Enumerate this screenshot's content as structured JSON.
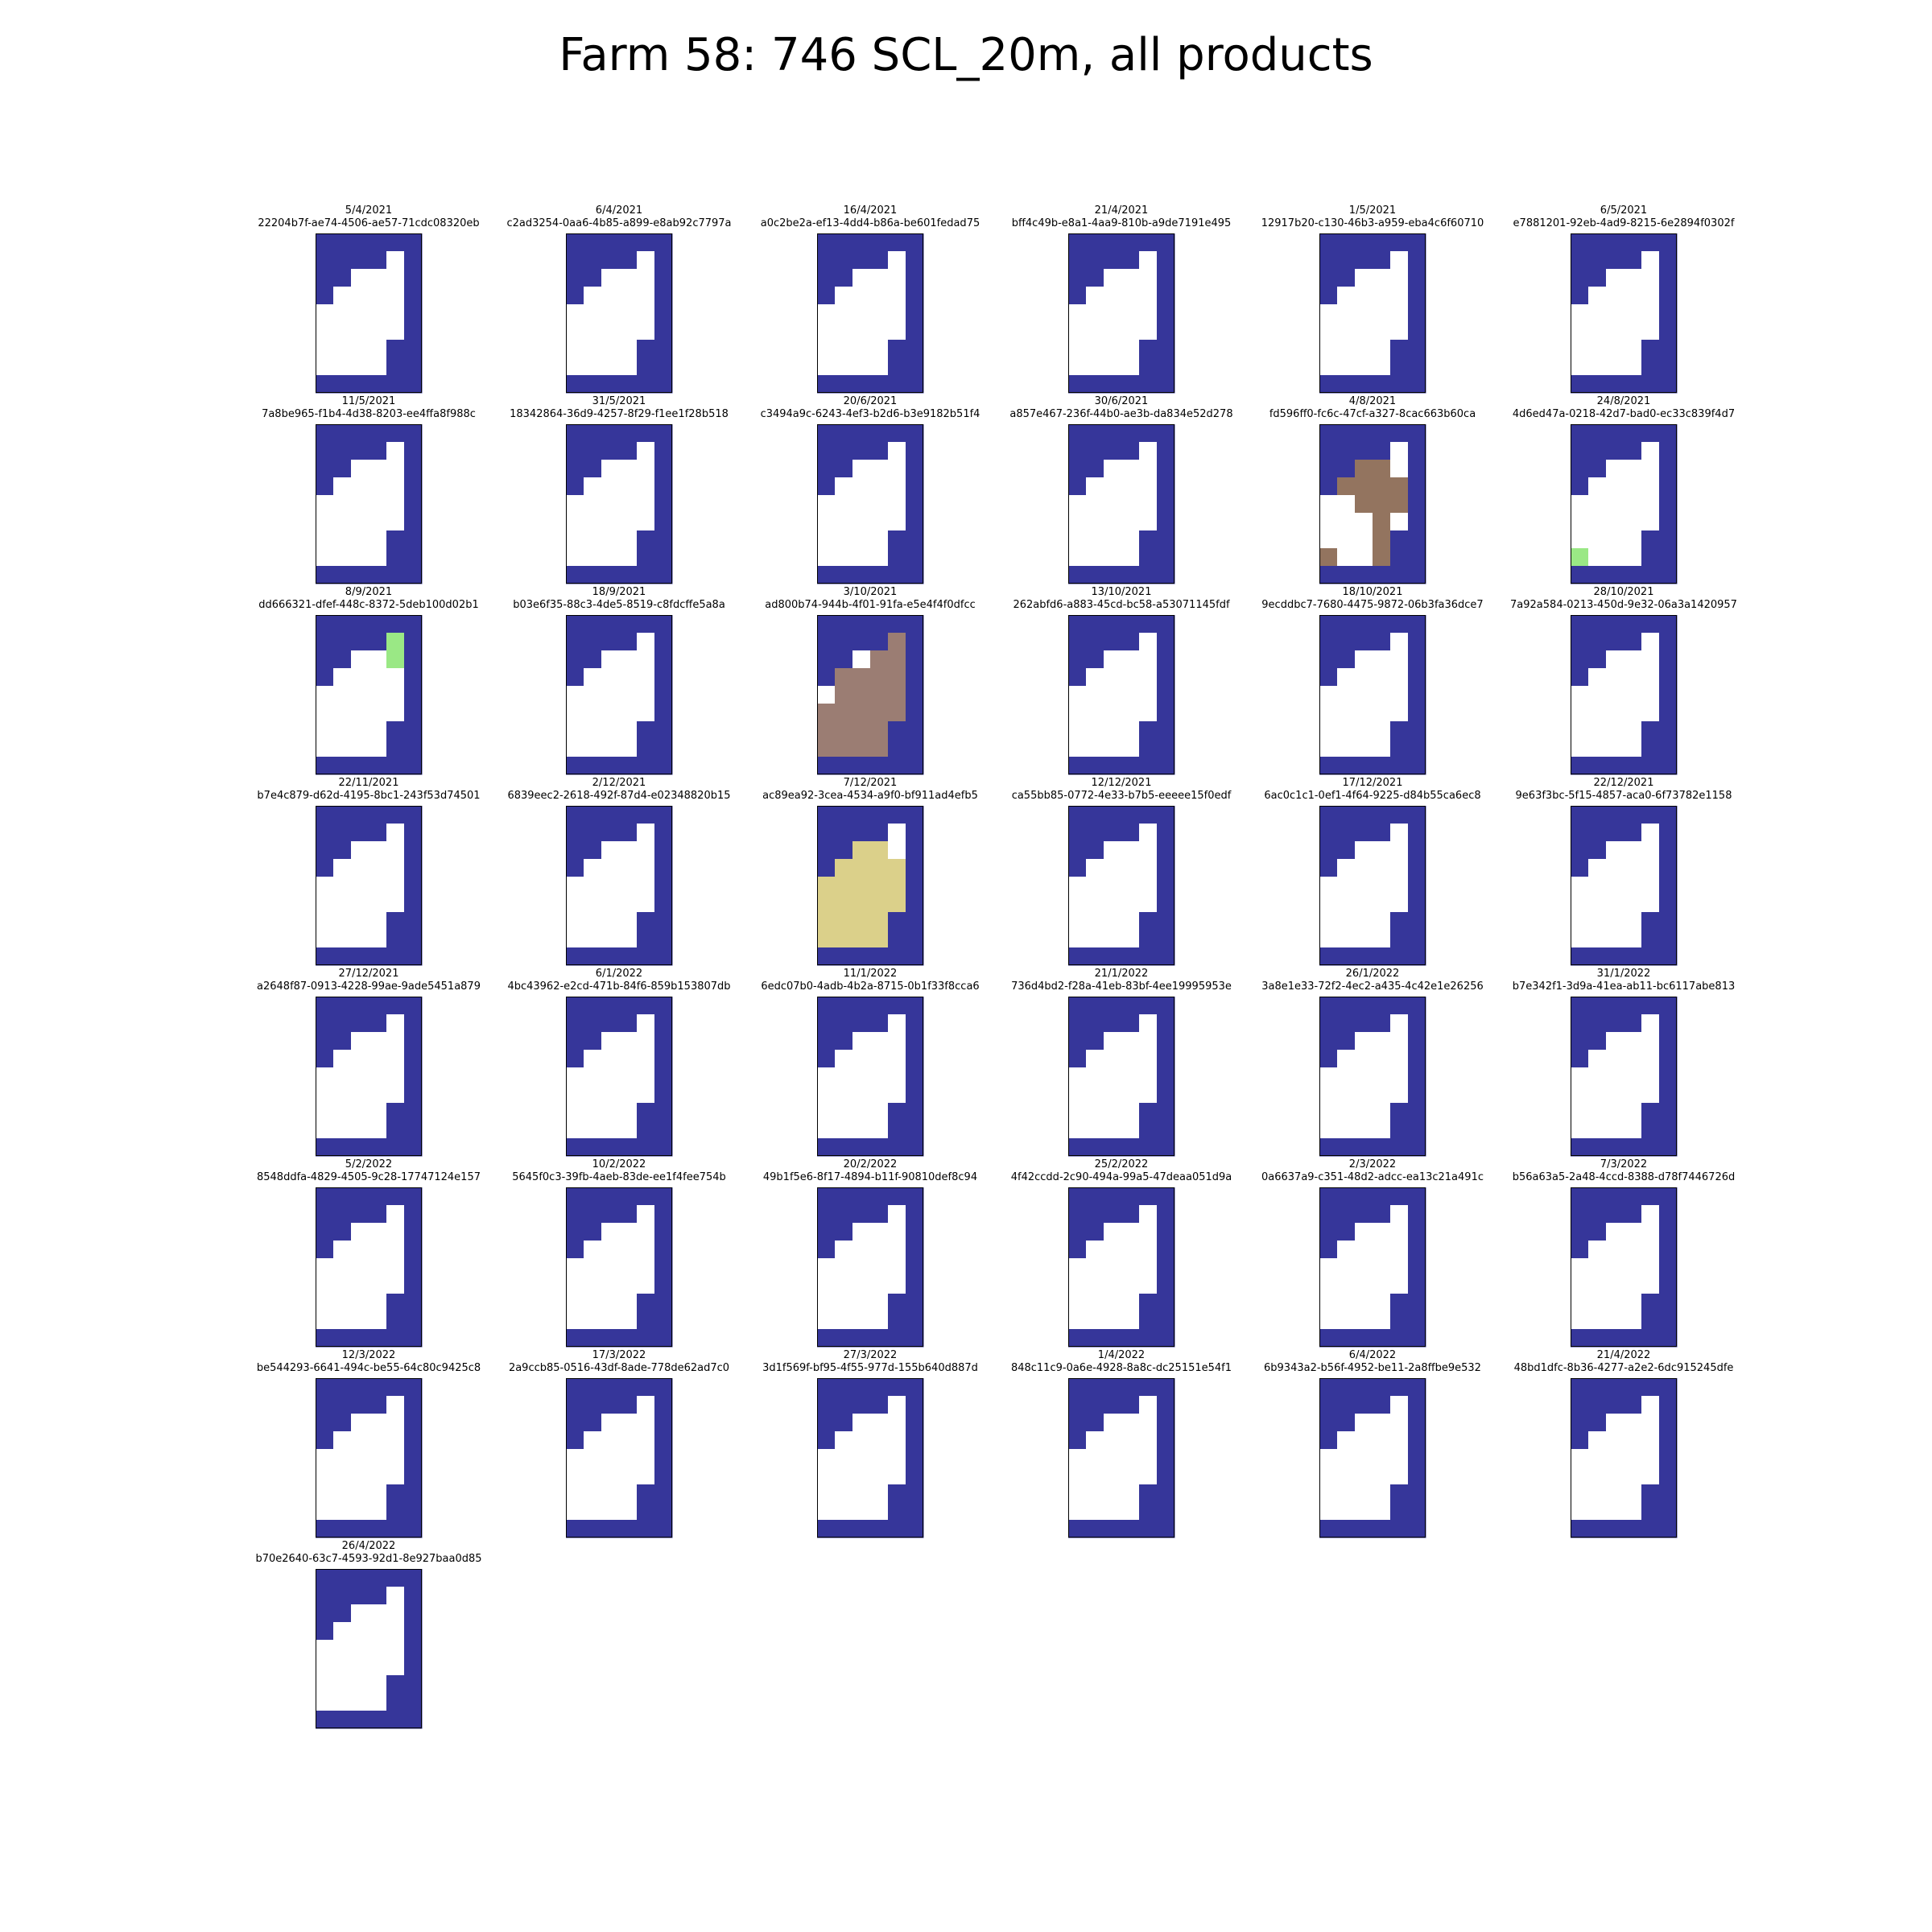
{
  "title": "Farm 58: 746 SCL_20m, all products",
  "colors": {
    "water": "#36369a",
    "clear": "#ffffff",
    "cloud_shadow": "#93745f",
    "thin_cirrus": "#9b7d73",
    "medium_cloud": "#dbd08a",
    "vegetation": "#9ae885",
    "frame": "#000000"
  },
  "chart_data": {
    "type": "heatmap",
    "grid": {
      "columns": 6,
      "rows": 9
    },
    "patches": {
      "base": [
        "WWWWWW",
        "WWWWEW",
        "WWEEEW",
        "WEEEEW",
        "EEEEEW",
        "EEEEEW",
        "EEEEWW",
        "EEEEWW",
        "WWWWWW"
      ],
      "p4_8_2021": [
        "WWWWWW",
        "WWWWEW",
        "WWSSEW",
        "WSSSSW",
        "EESSSW",
        "EEESEW",
        "EEESWW",
        "SEESWW",
        "WWWWWW"
      ],
      "p24_8_2021": [
        "WWWWWW",
        "WWWWEW",
        "WWEEEW",
        "WEEEEW",
        "EEEEEW",
        "EEEEEW",
        "EEEEWW",
        "VEEEWW",
        "WWWWWW"
      ],
      "p8_9_2021": [
        "WWWWWW",
        "WWWWVW",
        "WWEEVW",
        "WEEEEW",
        "EEEEEW",
        "EEEEEW",
        "EEEEWW",
        "EEEEWW",
        "WWWWWW"
      ],
      "p3_10_2021": [
        "WWWWWW",
        "WWWWCW",
        "WWECCW",
        "WCCCCW",
        "ECCCCW",
        "CCCCCW",
        "CCCCWW",
        "CCCCWW",
        "WWWWWW"
      ],
      "p7_12_2021": [
        "WWWWWW",
        "WWWWEW",
        "WWMMEW",
        "WMMMMW",
        "MMMMMW",
        "MMMMMW",
        "MMMMWW",
        "MMMMWW",
        "WWWWWW"
      ]
    },
    "panels": [
      {
        "date": "5/4/2021",
        "id": "22204b7f-ae74-4506-ae57-71cdc08320eb",
        "patch": "base"
      },
      {
        "date": "6/4/2021",
        "id": "c2ad3254-0aa6-4b85-a899-e8ab92c7797a",
        "patch": "base"
      },
      {
        "date": "16/4/2021",
        "id": "a0c2be2a-ef13-4dd4-b86a-be601fedad75",
        "patch": "base"
      },
      {
        "date": "21/4/2021",
        "id": "bff4c49b-e8a1-4aa9-810b-a9de7191e495",
        "patch": "base"
      },
      {
        "date": "1/5/2021",
        "id": "12917b20-c130-46b3-a959-eba4c6f60710",
        "patch": "base"
      },
      {
        "date": "6/5/2021",
        "id": "e7881201-92eb-4ad9-8215-6e2894f0302f",
        "patch": "base"
      },
      {
        "date": "11/5/2021",
        "id": "7a8be965-f1b4-4d38-8203-ee4ffa8f988c",
        "patch": "base"
      },
      {
        "date": "31/5/2021",
        "id": "18342864-36d9-4257-8f29-f1ee1f28b518",
        "patch": "base"
      },
      {
        "date": "20/6/2021",
        "id": "c3494a9c-6243-4ef3-b2d6-b3e9182b51f4",
        "patch": "base"
      },
      {
        "date": "30/6/2021",
        "id": "a857e467-236f-44b0-ae3b-da834e52d278",
        "patch": "base"
      },
      {
        "date": "4/8/2021",
        "id": "fd596ff0-fc6c-47cf-a327-8cac663b60ca",
        "patch": "p4_8_2021"
      },
      {
        "date": "24/8/2021",
        "id": "4d6ed47a-0218-42d7-bad0-ec33c839f4d7",
        "patch": "p24_8_2021"
      },
      {
        "date": "8/9/2021",
        "id": "dd666321-dfef-448c-8372-5deb100d02b1",
        "patch": "p8_9_2021"
      },
      {
        "date": "18/9/2021",
        "id": "b03e6f35-88c3-4de5-8519-c8fdcffe5a8a",
        "patch": "base"
      },
      {
        "date": "3/10/2021",
        "id": "ad800b74-944b-4f01-91fa-e5e4f4f0dfcc",
        "patch": "p3_10_2021"
      },
      {
        "date": "13/10/2021",
        "id": "262abfd6-a883-45cd-bc58-a53071145fdf",
        "patch": "base"
      },
      {
        "date": "18/10/2021",
        "id": "9ecddbc7-7680-4475-9872-06b3fa36dce7",
        "patch": "base"
      },
      {
        "date": "28/10/2021",
        "id": "7a92a584-0213-450d-9e32-06a3a1420957",
        "patch": "base"
      },
      {
        "date": "22/11/2021",
        "id": "b7e4c879-d62d-4195-8bc1-243f53d74501",
        "patch": "base"
      },
      {
        "date": "2/12/2021",
        "id": "6839eec2-2618-492f-87d4-e02348820b15",
        "patch": "base"
      },
      {
        "date": "7/12/2021",
        "id": "ac89ea92-3cea-4534-a9f0-bf911ad4efb5",
        "patch": "p7_12_2021"
      },
      {
        "date": "12/12/2021",
        "id": "ca55bb85-0772-4e33-b7b5-eeeee15f0edf",
        "patch": "base"
      },
      {
        "date": "17/12/2021",
        "id": "6ac0c1c1-0ef1-4f64-9225-d84b55ca6ec8",
        "patch": "base"
      },
      {
        "date": "22/12/2021",
        "id": "9e63f3bc-5f15-4857-aca0-6f73782e1158",
        "patch": "base"
      },
      {
        "date": "27/12/2021",
        "id": "a2648f87-0913-4228-99ae-9ade5451a879",
        "patch": "base"
      },
      {
        "date": "6/1/2022",
        "id": "4bc43962-e2cd-471b-84f6-859b153807db",
        "patch": "base"
      },
      {
        "date": "11/1/2022",
        "id": "6edc07b0-4adb-4b2a-8715-0b1f33f8cca6",
        "patch": "base"
      },
      {
        "date": "21/1/2022",
        "id": "736d4bd2-f28a-41eb-83bf-4ee19995953e",
        "patch": "base"
      },
      {
        "date": "26/1/2022",
        "id": "3a8e1e33-72f2-4ec2-a435-4c42e1e26256",
        "patch": "base"
      },
      {
        "date": "31/1/2022",
        "id": "b7e342f1-3d9a-41ea-ab11-bc6117abe813",
        "patch": "base"
      },
      {
        "date": "5/2/2022",
        "id": "8548ddfa-4829-4505-9c28-17747124e157",
        "patch": "base"
      },
      {
        "date": "10/2/2022",
        "id": "5645f0c3-39fb-4aeb-83de-ee1f4fee754b",
        "patch": "base"
      },
      {
        "date": "20/2/2022",
        "id": "49b1f5e6-8f17-4894-b11f-90810def8c94",
        "patch": "base"
      },
      {
        "date": "25/2/2022",
        "id": "4f42ccdd-2c90-494a-99a5-47deaa051d9a",
        "patch": "base"
      },
      {
        "date": "2/3/2022",
        "id": "0a6637a9-c351-48d2-adcc-ea13c21a491c",
        "patch": "base"
      },
      {
        "date": "7/3/2022",
        "id": "b56a63a5-2a48-4ccd-8388-d78f7446726d",
        "patch": "base"
      },
      {
        "date": "12/3/2022",
        "id": "be544293-6641-494c-be55-64c80c9425c8",
        "patch": "base"
      },
      {
        "date": "17/3/2022",
        "id": "2a9ccb85-0516-43df-8ade-778de62ad7c0",
        "patch": "base"
      },
      {
        "date": "27/3/2022",
        "id": "3d1f569f-bf95-4f55-977d-155b640d887d",
        "patch": "base"
      },
      {
        "date": "1/4/2022",
        "id": "848c11c9-0a6e-4928-8a8c-dc25151e54f1",
        "patch": "base"
      },
      {
        "date": "6/4/2022",
        "id": "6b9343a2-b56f-4952-be11-2a8ffbe9e532",
        "patch": "base"
      },
      {
        "date": "21/4/2022",
        "id": "48bd1dfc-8b36-4277-a2e2-6dc915245dfe",
        "patch": "base"
      },
      {
        "date": "26/4/2022",
        "id": "b70e2640-63c7-4593-92d1-8e927baa0d85",
        "patch": "base"
      }
    ]
  }
}
